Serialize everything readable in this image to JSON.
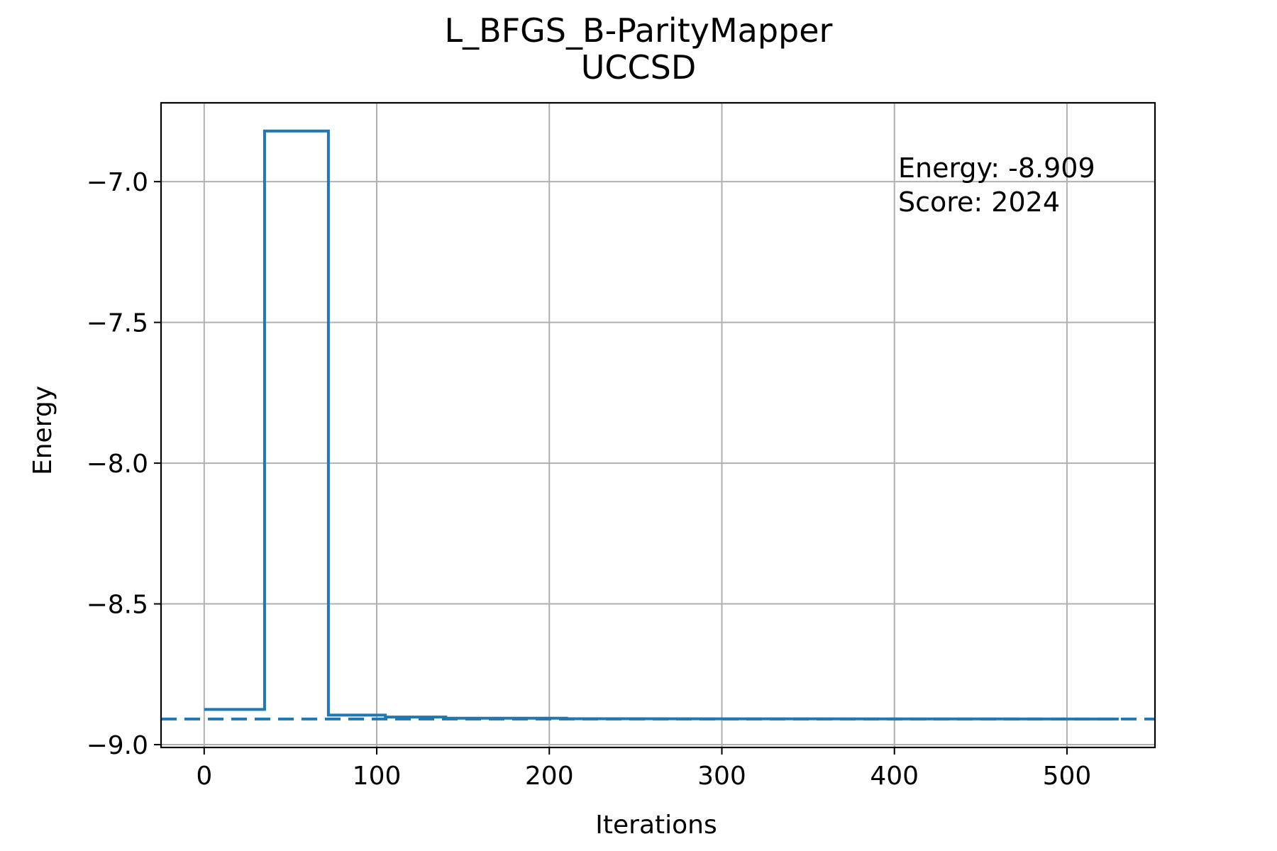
{
  "chart_data": {
    "type": "line",
    "title": "L_BFGS_B-ParityMapper",
    "subtitle": "UCCSD",
    "xlabel": "Iterations",
    "ylabel": "Energy",
    "xlim": [
      -25,
      551
    ],
    "ylim": [
      -9.01,
      -6.72
    ],
    "xticks": [
      0,
      100,
      200,
      300,
      400,
      500
    ],
    "xtick_labels": [
      "0",
      "100",
      "200",
      "300",
      "400",
      "500"
    ],
    "yticks": [
      -9.0,
      -8.5,
      -8.0,
      -7.5,
      -7.0
    ],
    "ytick_labels": [
      "−9.0",
      "−8.5",
      "−8.0",
      "−7.5",
      "−7.0"
    ],
    "grid": true,
    "series": [
      {
        "color": "#1f77b4",
        "style": "step",
        "x": [
          0,
          35,
          35,
          70,
          72,
          72,
          105,
          105,
          140,
          140,
          210,
          210,
          530
        ],
        "y": [
          -8.875,
          -8.875,
          -6.82,
          -6.82,
          -6.82,
          -8.895,
          -8.895,
          -8.902,
          -8.902,
          -8.906,
          -8.906,
          -8.908,
          -8.909
        ]
      }
    ],
    "reference_line": {
      "y": -8.909,
      "color": "#1f77b4",
      "style": "dashed"
    },
    "annotation": {
      "energy_text": "Energy: -8.909",
      "score_text": "Score: 2024"
    }
  }
}
